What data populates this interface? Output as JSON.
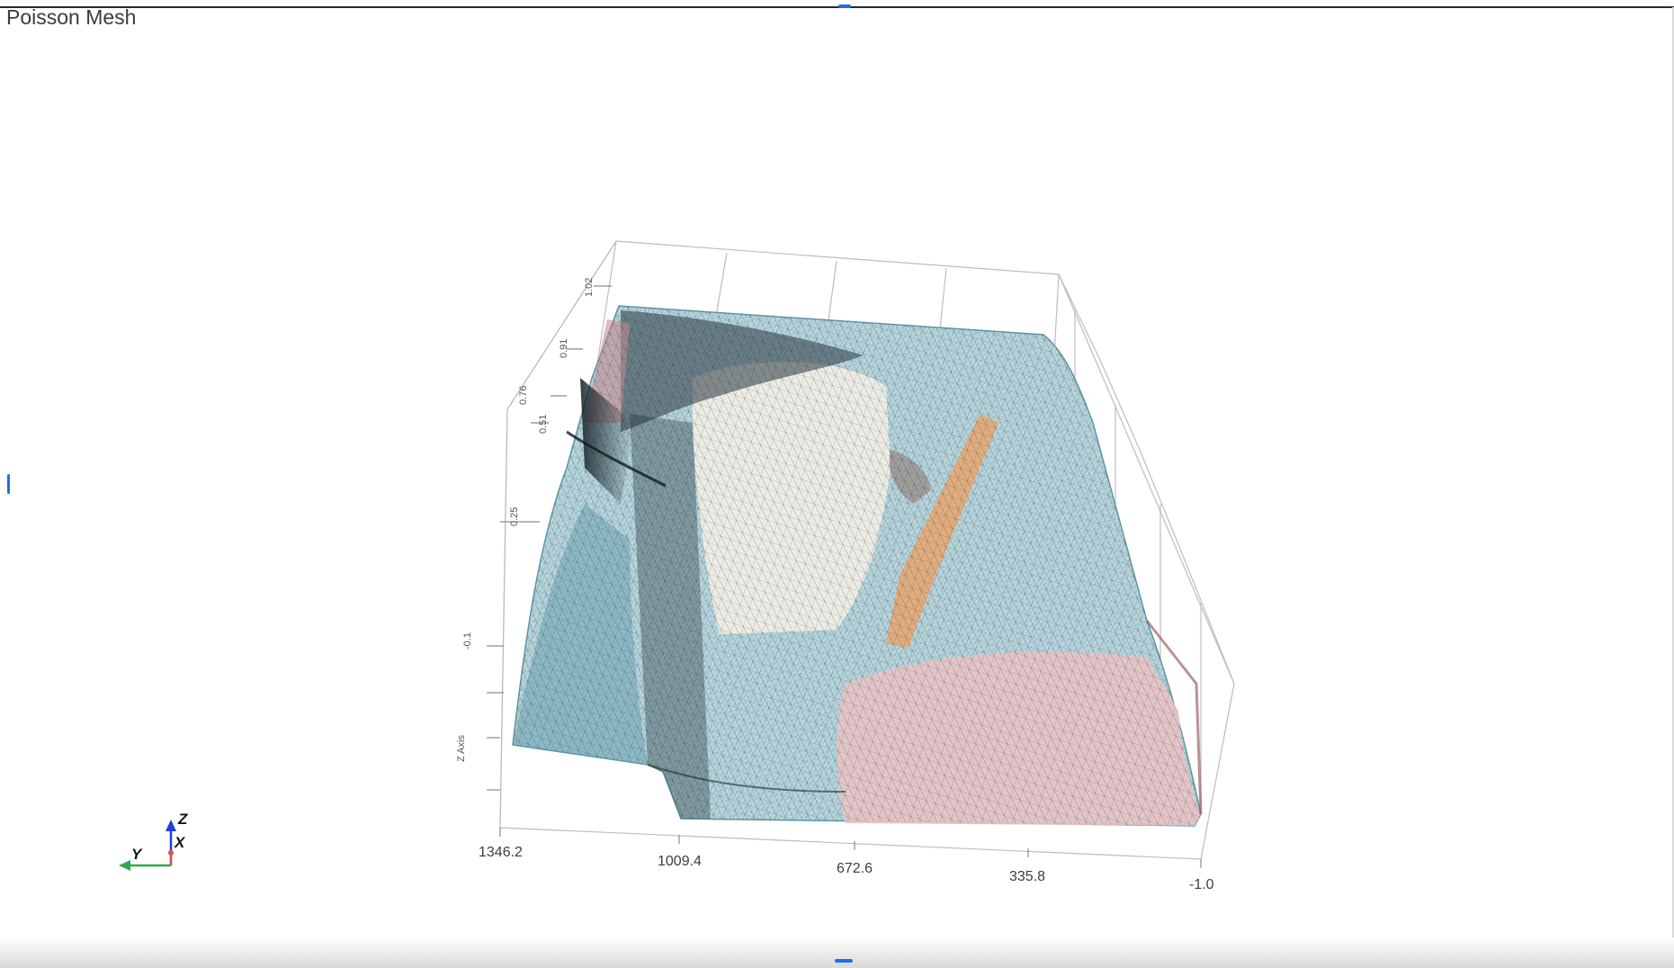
{
  "window": {
    "title": "Poisson Mesh"
  },
  "axes": {
    "x_ticks": [
      "1346.2",
      "1009.4",
      "672.6",
      "335.8",
      "-1.0"
    ],
    "z_label": "Z Axis",
    "z_ticks": [
      "-0.1",
      "0.25",
      "0.51",
      "0.76",
      "0.91",
      "1.02"
    ]
  },
  "orientation_widget": {
    "x_label": "X",
    "y_label": "Y",
    "z_label": "Z"
  },
  "colors": {
    "mesh_teal": "#5e97a8",
    "mesh_dark": "#1f2b33",
    "mesh_pink": "#c48b90",
    "mesh_cream": "#f3f0e6",
    "mesh_orange": "#f0a060",
    "axis_x": "#d9534f",
    "axis_y": "#2ea84a",
    "axis_z": "#1f3fd9",
    "handle_blue": "#1e6fe6"
  }
}
